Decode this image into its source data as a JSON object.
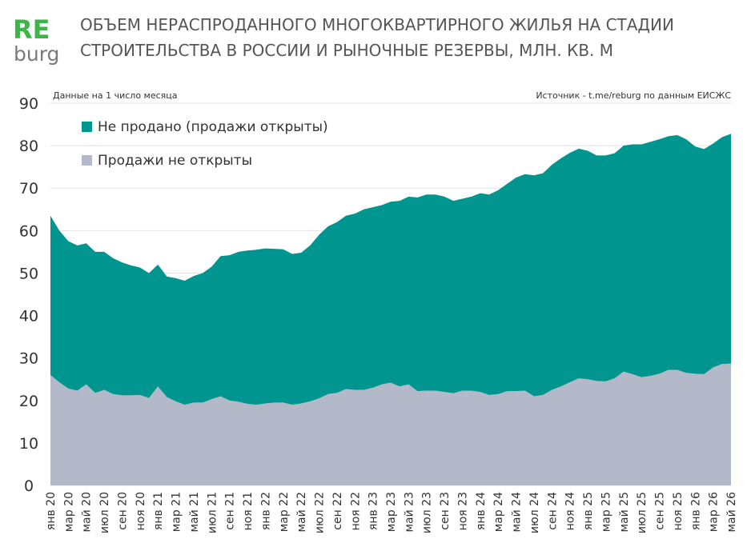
{
  "logo": {
    "top": "RE",
    "bottom": "burg"
  },
  "chart_data": {
    "type": "stacked_area",
    "title": [
      "ОБЪЕМ НЕРАСПРОДАННОГО МНОГОКВАРТИРНОГО ЖИЛЬЯ НА СТАДИИ",
      "СТРОИТЕЛЬСТВА В РОССИИ И РЫНОЧНЫЕ РЕЗЕРВЫ, МЛН. КВ. М"
    ],
    "note_left": "Данные на 1 число месяца",
    "note_right": "Источник - t.me/reburg по данным ЕИСЖС",
    "categories": [
      "янв 20",
      null,
      "мар 20",
      null,
      "май 20",
      null,
      "июл 20",
      null,
      "сен 20",
      null,
      "ноя 20",
      null,
      "янв 21",
      null,
      "мар 21",
      null,
      "май 21",
      null,
      "июл 21",
      null,
      "сен 21",
      null,
      "ноя 21",
      null,
      "янв 22",
      null,
      "мар 22",
      null,
      "май 22",
      null,
      "июл 22",
      null,
      "сен 22",
      null,
      "ноя 22",
      null,
      "янв 23",
      null,
      "мар 23",
      null,
      "май 23",
      null,
      "июл 23",
      null,
      "сен 23",
      null,
      "ноя 23",
      null,
      "янв 24",
      null,
      "мар 24",
      null,
      "май 24",
      null,
      "июл 24",
      null,
      "сен 24",
      null,
      "ноя 24",
      null,
      "янв 25",
      null,
      "мар 25",
      null,
      "май 25",
      null,
      "июл 25",
      null,
      "сен 25",
      null,
      "ноя 25",
      null,
      "янв 26",
      null,
      "мар 26",
      null,
      "май 26"
    ],
    "series": [
      {
        "name": "Не продано (продажи открыты)",
        "color": "#00958f",
        "values": [
          37.5,
          35.7,
          34.7,
          34.2,
          33.2,
          33.2,
          32.5,
          32,
          31.3,
          30.6,
          30,
          29.4,
          28.7,
          28.4,
          29,
          29.2,
          29.8,
          30.5,
          31.2,
          33,
          34.2,
          35.3,
          36.1,
          36.5,
          36.5,
          36.2,
          36.1,
          35.5,
          35.5,
          36.7,
          38.5,
          39.5,
          40.2,
          40.8,
          41.5,
          42.5,
          42.5,
          42.2,
          42.6,
          43.7,
          44.2,
          45.6,
          46.2,
          46.2,
          46,
          45.3,
          45.2,
          45.7,
          46.8,
          47.2,
          48,
          48.8,
          50.3,
          51,
          52,
          52.2,
          53,
          53.7,
          54,
          54.1,
          53.8,
          53.1,
          53.2,
          53,
          53.2,
          54.1,
          54.8,
          55.1,
          55.2,
          55,
          55.3,
          55,
          53.5,
          53,
          52.7,
          53.4,
          54.1
        ]
      },
      {
        "name": "Продажи не открыты",
        "color": "#b3b9c9",
        "values": [
          26,
          24.3,
          22.8,
          22.3,
          23.8,
          21.8,
          22.5,
          21.5,
          21.2,
          21.2,
          21.3,
          20.6,
          23.3,
          20.8,
          19.8,
          19,
          19.5,
          19.5,
          20.3,
          21,
          20,
          19.7,
          19.2,
          19,
          19.3,
          19.5,
          19.5,
          19,
          19.3,
          19.8,
          20.5,
          21.5,
          21.8,
          22.7,
          22.5,
          22.5,
          23,
          23.8,
          24.2,
          23.3,
          23.8,
          22.2,
          22.3,
          22.3,
          22,
          21.7,
          22.3,
          22.3,
          22,
          21.3,
          21.5,
          22.2,
          22.2,
          22.3,
          21,
          21.3,
          22.5,
          23.3,
          24.3,
          25.2,
          25,
          24.6,
          24.5,
          25.2,
          26.8,
          26.2,
          25.5,
          25.8,
          26.3,
          27.2,
          27.2,
          26.5,
          26.3,
          26.2,
          27.8,
          28.6,
          28.7
        ]
      }
    ],
    "ylim": [
      0,
      90
    ],
    "yticks": [
      0,
      10,
      20,
      30,
      40,
      50,
      60,
      70,
      80,
      90
    ],
    "grid": true,
    "legend": "top-left"
  }
}
